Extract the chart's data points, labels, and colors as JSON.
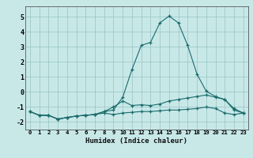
{
  "xlabel": "Humidex (Indice chaleur)",
  "xlim": [
    -0.5,
    23.5
  ],
  "ylim": [
    -2.5,
    5.7
  ],
  "yticks": [
    -2,
    -1,
    0,
    1,
    2,
    3,
    4,
    5
  ],
  "xticks": [
    0,
    1,
    2,
    3,
    4,
    5,
    6,
    7,
    8,
    9,
    10,
    11,
    12,
    13,
    14,
    15,
    16,
    17,
    18,
    19,
    20,
    21,
    22,
    23
  ],
  "background_color": "#c8e8e8",
  "grid_color": "#a0c8c8",
  "line_color": "#1a6b6b",
  "lines": [
    [
      0,
      -1.3,
      1,
      -1.55,
      2,
      -1.55,
      3,
      -1.8,
      4,
      -1.7,
      5,
      -1.6,
      6,
      -1.55,
      7,
      -1.5,
      8,
      -1.3,
      9,
      -1.2,
      10,
      -0.35,
      11,
      1.5,
      12,
      3.1,
      13,
      3.3,
      14,
      4.6,
      15,
      5.05,
      16,
      4.6,
      17,
      3.1,
      18,
      1.2,
      19,
      0.05,
      20,
      -0.3,
      21,
      -0.5,
      22,
      -1.1,
      23,
      -1.4
    ],
    [
      0,
      -1.3,
      1,
      -1.55,
      2,
      -1.55,
      3,
      -1.8,
      4,
      -1.7,
      5,
      -1.6,
      6,
      -1.55,
      7,
      -1.5,
      8,
      -1.3,
      9,
      -1.0,
      10,
      -0.6,
      11,
      -0.9,
      12,
      -0.85,
      13,
      -0.9,
      14,
      -0.8,
      15,
      -0.6,
      16,
      -0.5,
      17,
      -0.4,
      18,
      -0.3,
      19,
      -0.2,
      20,
      -0.35,
      21,
      -0.5,
      22,
      -1.2,
      23,
      -1.4
    ],
    [
      0,
      -1.3,
      1,
      -1.55,
      2,
      -1.55,
      3,
      -1.8,
      4,
      -1.7,
      5,
      -1.6,
      6,
      -1.55,
      7,
      -1.5,
      8,
      -1.4,
      9,
      -1.5,
      10,
      -1.4,
      11,
      -1.35,
      12,
      -1.3,
      13,
      -1.3,
      14,
      -1.25,
      15,
      -1.2,
      16,
      -1.2,
      17,
      -1.15,
      18,
      -1.1,
      19,
      -1.0,
      20,
      -1.1,
      21,
      -1.4,
      22,
      -1.5,
      23,
      -1.4
    ]
  ],
  "figsize": [
    3.2,
    2.0
  ],
  "dpi": 100
}
